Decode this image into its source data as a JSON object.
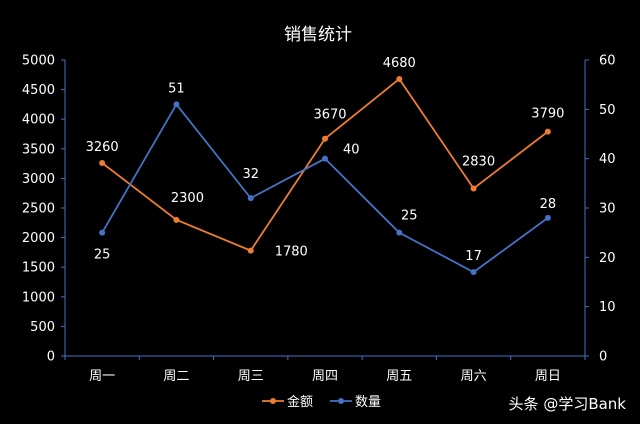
{
  "chart_data": {
    "type": "line",
    "title": "销售统计",
    "categories": [
      "周一",
      "周二",
      "周三",
      "周四",
      "周五",
      "周六",
      "周日"
    ],
    "series": [
      {
        "name": "金额",
        "axis": "left",
        "color": "#ED7D31",
        "values": [
          3260,
          2300,
          1780,
          3670,
          4680,
          2830,
          3790
        ]
      },
      {
        "name": "数量",
        "axis": "right",
        "color": "#4472C4",
        "values": [
          25,
          51,
          32,
          40,
          25,
          17,
          28
        ]
      }
    ],
    "y_left": {
      "min": 0,
      "max": 5000,
      "step": 500
    },
    "y_right": {
      "min": 0,
      "max": 60,
      "step": 10
    },
    "grid": false,
    "legend": "bottom"
  },
  "watermark": "头条 @学习Bank"
}
